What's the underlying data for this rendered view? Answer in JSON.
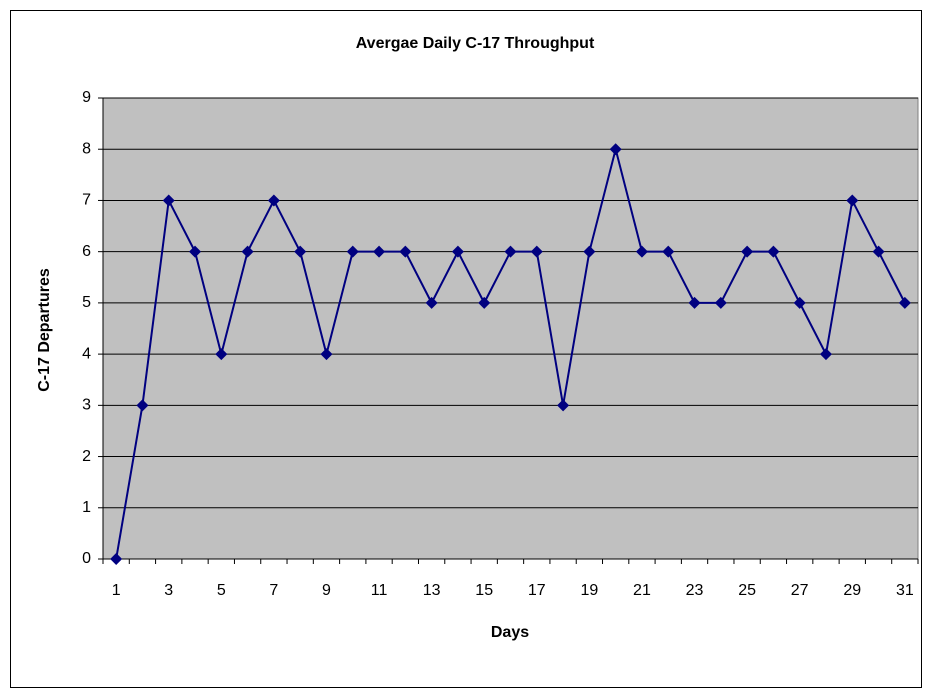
{
  "chart_data": {
    "type": "line",
    "title": "Avergae Daily C-17 Throughput",
    "x_label": "Days",
    "y_label": "C-17 Departures",
    "categories": [
      1,
      null,
      3,
      null,
      5,
      null,
      7,
      null,
      9,
      null,
      11,
      null,
      13,
      null,
      15,
      null,
      17,
      null,
      19,
      null,
      21,
      null,
      23,
      null,
      25,
      null,
      27,
      null,
      29,
      null,
      31
    ],
    "values": [
      0,
      3,
      7,
      6,
      4,
      6,
      7,
      6,
      4,
      6,
      6,
      6,
      5,
      6,
      5,
      6,
      6,
      3,
      6,
      8,
      6,
      6,
      5,
      5,
      6,
      6,
      5,
      4,
      7,
      6,
      5
    ],
    "color": "#000080",
    "plot_background": "#c0c0c0",
    "ylim": [
      0,
      9
    ],
    "yticks": [
      0,
      1,
      2,
      3,
      4,
      5,
      6,
      7,
      8,
      9
    ],
    "grid": true,
    "marker": "diamond"
  }
}
